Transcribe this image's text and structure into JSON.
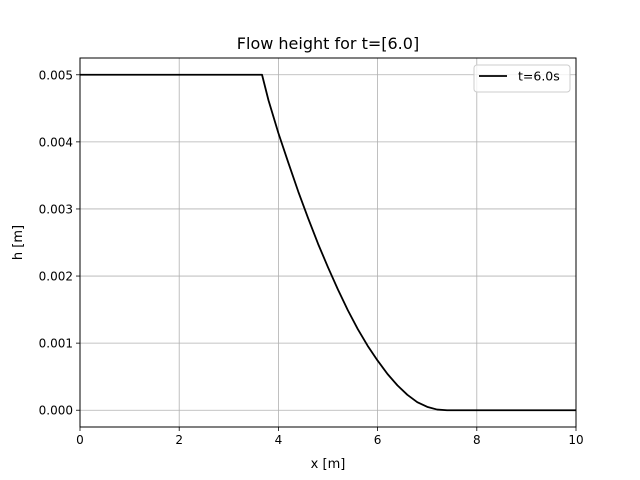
{
  "chart_data": {
    "type": "line",
    "title": "Flow height for t=[6.0]",
    "xlabel": "x [m]",
    "ylabel": "h [m]",
    "xlim": [
      0,
      10
    ],
    "ylim": [
      -0.00025,
      0.00525
    ],
    "xticks": [
      0,
      2,
      4,
      6,
      8,
      10
    ],
    "xtick_labels": [
      "0",
      "2",
      "4",
      "6",
      "8",
      "10"
    ],
    "yticks": [
      0.0,
      0.001,
      0.002,
      0.003,
      0.004,
      0.005
    ],
    "ytick_labels": [
      "0.000",
      "0.001",
      "0.002",
      "0.003",
      "0.004",
      "0.005"
    ],
    "grid": true,
    "legend_position": "top-right",
    "series": [
      {
        "name": "t=6.0s",
        "color": "#000000",
        "x": [
          0,
          0.5,
          1,
          1.5,
          2,
          2.5,
          3,
          3.5,
          3.67,
          3.8,
          4.0,
          4.2,
          4.4,
          4.6,
          4.8,
          5.0,
          5.2,
          5.4,
          5.6,
          5.8,
          6.0,
          6.2,
          6.4,
          6.6,
          6.8,
          7.0,
          7.2,
          7.4,
          7.6,
          7.8,
          8.0,
          8.5,
          9.0,
          9.5,
          10.0
        ],
        "y": [
          0.005,
          0.005,
          0.005,
          0.005,
          0.005,
          0.005,
          0.005,
          0.005,
          0.005,
          0.00462,
          0.00413,
          0.00369,
          0.00326,
          0.00286,
          0.00248,
          0.00213,
          0.0018,
          0.00149,
          0.00121,
          0.00096,
          0.00074,
          0.00054,
          0.00037,
          0.00023,
          0.00012,
          5e-05,
          1e-05,
          0.0,
          0.0,
          0.0,
          0.0,
          0.0,
          0.0,
          0.0,
          0.0
        ]
      }
    ]
  }
}
